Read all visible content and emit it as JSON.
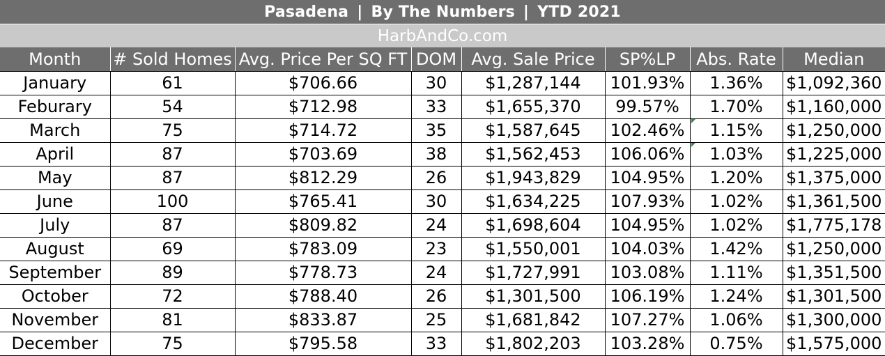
{
  "title": {
    "city": "Pasadena",
    "subtitle": "By The Numbers",
    "period": "YTD 2021",
    "separator": "|"
  },
  "website": "HarbAndCo.com",
  "table": {
    "columns": [
      "Month",
      "# Sold Homes",
      "Avg. Price Per SQ FT",
      "DOM",
      "Avg. Sale Price",
      "SP%LP",
      "Abs. Rate",
      "Median"
    ],
    "rows": [
      [
        "January",
        "61",
        "$706.66",
        "30",
        "$1,287,144",
        "101.93%",
        "1.36%",
        "$1,092,360"
      ],
      [
        "Feburary",
        "54",
        "$712.98",
        "33",
        "$1,655,370",
        "99.57%",
        "1.70%",
        "$1,160,000"
      ],
      [
        "March",
        "75",
        "$714.72",
        "35",
        "$1,587,645",
        "102.46%",
        "1.15%",
        "$1,250,000"
      ],
      [
        "April",
        "87",
        "$703.69",
        "38",
        "$1,562,453",
        "106.06%",
        "1.03%",
        "$1,225,000"
      ],
      [
        "May",
        "87",
        "$812.29",
        "26",
        "$1,943,829",
        "104.95%",
        "1.20%",
        "$1,375,000"
      ],
      [
        "June",
        "100",
        "$765.41",
        "30",
        "$1,634,225",
        "107.93%",
        "1.02%",
        "$1,361,500"
      ],
      [
        "July",
        "87",
        "$809.82",
        "24",
        "$1,698,604",
        "104.95%",
        "1.02%",
        "$1,775,178"
      ],
      [
        "August",
        "69",
        "$783.09",
        "23",
        "$1,550,001",
        "104.03%",
        "1.42%",
        "$1,250,000"
      ],
      [
        "September",
        "89",
        "$778.73",
        "24",
        "$1,727,991",
        "103.08%",
        "1.11%",
        "$1,351,500"
      ],
      [
        "October",
        "72",
        "$788.40",
        "26",
        "$1,301,500",
        "106.19%",
        "1.24%",
        "$1,301,500"
      ],
      [
        "November",
        "81",
        "$833.87",
        "25",
        "$1,681,842",
        "107.27%",
        "1.06%",
        "$1,300,000"
      ],
      [
        "December",
        "75",
        "$795.58",
        "33",
        "$1,802,203",
        "103.28%",
        "0.75%",
        "$1,575,000"
      ]
    ]
  },
  "colors": {
    "header_bg": "#6e6e6e",
    "subheader_bg": "#c9c9c9",
    "header_text": "#ffffff",
    "grid_line": "#000000",
    "accent_green": "#2e8b3e"
  }
}
